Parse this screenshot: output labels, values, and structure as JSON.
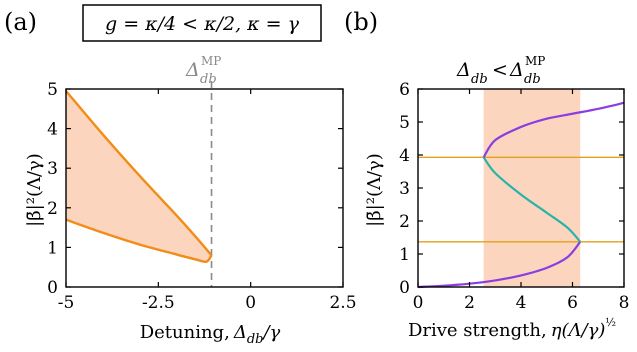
{
  "colors": {
    "orange_line": "#f28c17",
    "shade": "#fcd5bf",
    "purple": "#8a3ee0",
    "teal": "#2ab3a8",
    "hline": "#e0a21a",
    "dashed": "#8a8a8a"
  },
  "header": {
    "panel_a": "(a)",
    "panel_b": "(b)",
    "box_formula": "g = κ/4 < κ/2, κ = γ"
  },
  "chart_data": [
    {
      "type": "area",
      "panel": "(a)",
      "xlabel": "Detuning, Δdb/γ",
      "ylabel": "|β̄|²(Λ/γ)",
      "xlim": [
        -5,
        2.5
      ],
      "ylim": [
        0,
        5
      ],
      "xticks": [
        -5,
        -2.5,
        0,
        2.5
      ],
      "xtick_labels": [
        "-5",
        "-2.5",
        "0",
        "2.5"
      ],
      "yticks": [
        0,
        1,
        2,
        3,
        4,
        5
      ],
      "ytick_labels": [
        "0",
        "1",
        "2",
        "3",
        "4",
        "5"
      ],
      "vline": {
        "x": -1.06,
        "label": "ΔdbMP",
        "style": "dashed"
      },
      "series": [
        {
          "x": [
            -5,
            -4,
            -3,
            -2,
            -1.5,
            -1.06
          ],
          "values": [
            4.95,
            3.85,
            2.8,
            1.8,
            1.28,
            0.8
          ]
        },
        {
          "x": [
            -5,
            -4,
            -3,
            -2,
            -1.5,
            -1.2,
            -1.06
          ],
          "values": [
            1.7,
            1.37,
            1.07,
            0.82,
            0.7,
            0.64,
            0.8
          ]
        }
      ],
      "shaded_between_series": true
    },
    {
      "type": "line",
      "panel": "(b)",
      "title": "Δdb < ΔdbMP",
      "xlabel": "Drive strength, η(Λ/γ)^½",
      "ylabel": "|β̄|²(Λ/γ)",
      "xlim": [
        0,
        8
      ],
      "ylim": [
        0,
        6
      ],
      "xticks": [
        0,
        2,
        4,
        6,
        8
      ],
      "xtick_labels": [
        "0",
        "2",
        "4",
        "6",
        "8"
      ],
      "yticks": [
        0,
        1,
        2,
        3,
        4,
        5,
        6
      ],
      "ytick_labels": [
        "0",
        "1",
        "2",
        "3",
        "4",
        "5",
        "6"
      ],
      "shaded_x_range": [
        2.55,
        6.3
      ],
      "hlines": [
        3.93,
        1.37
      ],
      "series": [
        {
          "branch": "lower stable",
          "x": [
            0,
            1,
            2,
            3,
            4,
            5,
            5.8,
            6.3
          ],
          "values": [
            0,
            0.04,
            0.1,
            0.2,
            0.35,
            0.58,
            0.9,
            1.37
          ]
        },
        {
          "branch": "unstable",
          "x": [
            6.3,
            5.8,
            5,
            4,
            3,
            2.55
          ],
          "values": [
            1.37,
            1.8,
            2.25,
            2.8,
            3.45,
            3.93
          ]
        },
        {
          "branch": "upper stable",
          "x": [
            2.55,
            3,
            4,
            5,
            6,
            7,
            8
          ],
          "values": [
            3.93,
            4.45,
            4.85,
            5.1,
            5.25,
            5.4,
            5.58
          ]
        }
      ]
    }
  ]
}
